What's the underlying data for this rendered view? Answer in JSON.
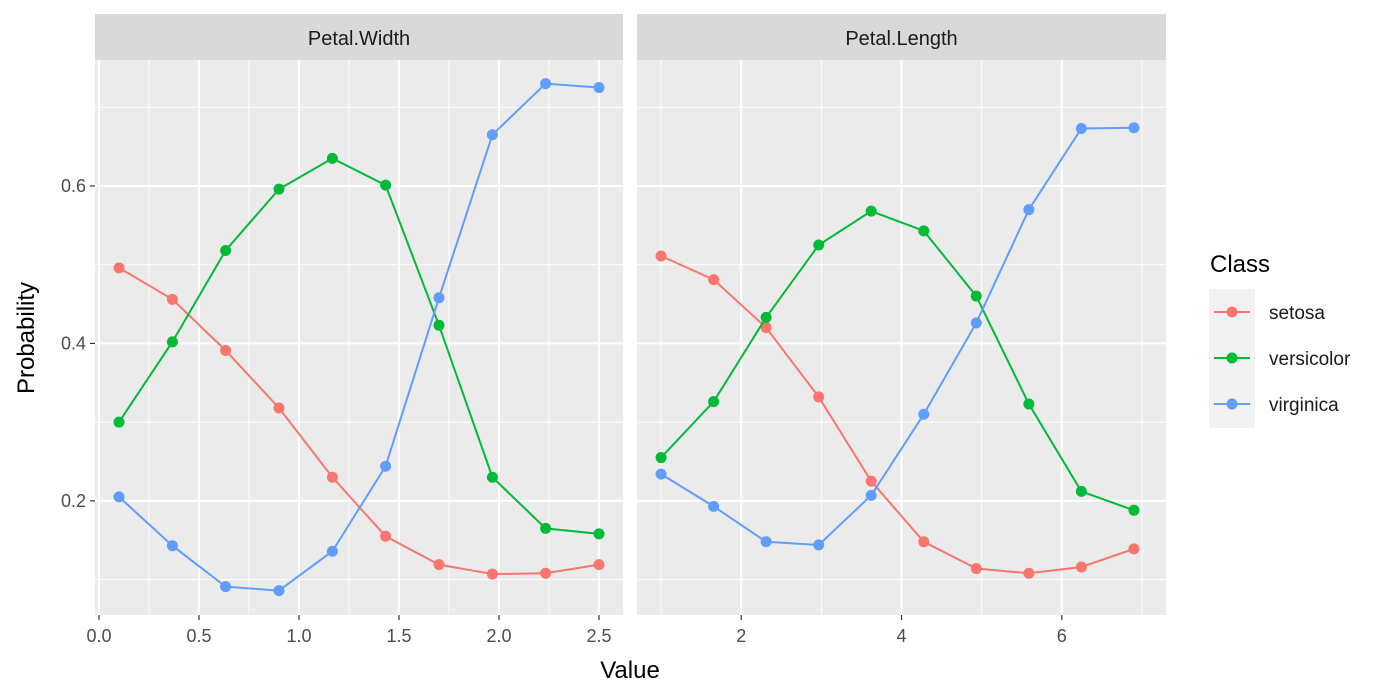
{
  "colors": {
    "setosa": "#F8766D",
    "versicolor": "#00BA38",
    "virginica": "#619CFF",
    "panel_bg": "#EBEBEB",
    "strip_bg": "#D9D9D9",
    "grid": "#FFFFFF"
  },
  "axes": {
    "xlabel": "Value",
    "ylabel": "Probability"
  },
  "legend": {
    "title": "Class",
    "placement": "right",
    "items": [
      "setosa",
      "versicolor",
      "virginica"
    ]
  },
  "chart_data": [
    {
      "type": "line",
      "facet": "Petal.Width",
      "xlim": [
        -0.02,
        2.62
      ],
      "ylim": [
        0.055,
        0.76
      ],
      "x_ticks": [
        "0.0",
        "0.5",
        "1.0",
        "1.5",
        "2.0",
        "2.5"
      ],
      "y_ticks": [
        "0.2",
        "0.4",
        "0.6"
      ],
      "grid": true,
      "x": [
        0.1,
        0.367,
        0.633,
        0.9,
        1.167,
        1.433,
        1.7,
        1.967,
        2.233,
        2.5
      ],
      "series": [
        {
          "name": "setosa",
          "values": [
            0.496,
            0.456,
            0.391,
            0.318,
            0.23,
            0.155,
            0.119,
            0.107,
            0.108,
            0.119
          ]
        },
        {
          "name": "versicolor",
          "values": [
            0.3,
            0.402,
            0.518,
            0.596,
            0.635,
            0.601,
            0.423,
            0.23,
            0.165,
            0.158
          ]
        },
        {
          "name": "virginica",
          "values": [
            0.205,
            0.143,
            0.091,
            0.086,
            0.136,
            0.244,
            0.458,
            0.665,
            0.73,
            0.725
          ]
        }
      ]
    },
    {
      "type": "line",
      "facet": "Petal.Length",
      "xlim": [
        0.7,
        7.3
      ],
      "ylim": [
        0.055,
        0.76
      ],
      "x_ticks": [
        "2",
        "4",
        "6"
      ],
      "y_ticks": [
        "0.2",
        "0.4",
        "0.6"
      ],
      "grid": true,
      "x": [
        1.0,
        1.656,
        2.311,
        2.967,
        3.622,
        4.278,
        4.933,
        5.589,
        6.244,
        6.9
      ],
      "series": [
        {
          "name": "setosa",
          "values": [
            0.511,
            0.481,
            0.42,
            0.332,
            0.225,
            0.148,
            0.114,
            0.108,
            0.116,
            0.139
          ]
        },
        {
          "name": "versicolor",
          "values": [
            0.255,
            0.326,
            0.433,
            0.525,
            0.568,
            0.543,
            0.46,
            0.323,
            0.212,
            0.188
          ]
        },
        {
          "name": "virginica",
          "values": [
            0.234,
            0.193,
            0.148,
            0.144,
            0.207,
            0.31,
            0.426,
            0.57,
            0.673,
            0.674
          ]
        }
      ]
    }
  ]
}
